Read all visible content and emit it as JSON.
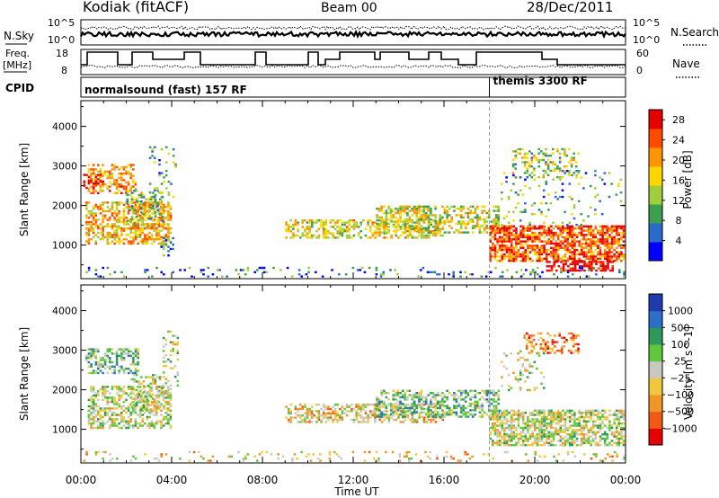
{
  "header": {
    "station": "Kodiak (fitACF)",
    "beam": "Beam 00",
    "date": "28/Dec/2011"
  },
  "top_panels": {
    "nsky_label": "N.Sky",
    "nsearch_label": "N.Search",
    "noise_ticks": [
      "10^5",
      "10^0"
    ],
    "freq_label_line1": "Freq.",
    "freq_label_line2": "[MHz]",
    "freq_ticks": [
      "18",
      "8"
    ],
    "nave_label": "Nave",
    "nave_ticks": [
      "60",
      "0"
    ],
    "cpid_label": "CPID",
    "cpid_segments": [
      {
        "name": "normalsound (fast) 157 RF",
        "start": 0,
        "end": 18
      },
      {
        "name": "themis 3300 RF",
        "start": 18,
        "end": 24
      }
    ]
  },
  "chart_data": [
    {
      "type": "heatmap",
      "title": "",
      "xlabel": "Time UT",
      "ylabel": "Slant Range [km]",
      "xlim": [
        0,
        24
      ],
      "ylim": [
        150,
        4650
      ],
      "x_ticks": [
        "00:00",
        "04:00",
        "08:00",
        "12:00",
        "16:00",
        "20:00",
        "00:00"
      ],
      "y_ticks": [
        1000,
        2000,
        3000,
        4000
      ],
      "colorbar": {
        "label": "Power [dB]",
        "ticks": [
          4,
          8,
          12,
          16,
          20,
          24,
          28
        ],
        "range": [
          0,
          30
        ],
        "colors": [
          "#0000ff",
          "#2a6acd",
          "#3ca050",
          "#a0cd3c",
          "#ffd700",
          "#ff9600",
          "#ff4b00",
          "#e60000"
        ]
      },
      "scatter_regions": [
        {
          "t0": 0.3,
          "t1": 2.5,
          "r0": 2300,
          "r1": 3050,
          "mean": 20,
          "density": 0.55
        },
        {
          "t0": 0.2,
          "t1": 4.0,
          "r0": 1000,
          "r1": 2100,
          "mean": 19,
          "density": 0.6
        },
        {
          "t0": 0.1,
          "t1": 1.0,
          "r0": 2400,
          "r1": 2800,
          "mean": 27,
          "density": 0.5
        },
        {
          "t0": 2.0,
          "t1": 3.6,
          "r0": 1500,
          "r1": 2400,
          "mean": 12,
          "density": 0.35
        },
        {
          "t0": 3.0,
          "t1": 4.2,
          "r0": 2100,
          "r1": 3500,
          "mean": 10,
          "density": 0.18
        },
        {
          "t0": 3.5,
          "t1": 4.1,
          "r0": 700,
          "r1": 1200,
          "mean": 9,
          "density": 0.4
        },
        {
          "t0": 9.0,
          "t1": 16.0,
          "r0": 1150,
          "r1": 1650,
          "mean": 16,
          "density": 0.5
        },
        {
          "t0": 13.0,
          "t1": 18.5,
          "r0": 1300,
          "r1": 2000,
          "mean": 15,
          "density": 0.55
        },
        {
          "t0": 18.0,
          "t1": 24.0,
          "r0": 550,
          "r1": 1500,
          "mean": 24,
          "density": 0.7
        },
        {
          "t0": 20.5,
          "t1": 23.5,
          "r0": 300,
          "r1": 600,
          "mean": 29,
          "density": 0.55
        },
        {
          "t0": 19.0,
          "t1": 22.0,
          "r0": 2700,
          "r1": 3450,
          "mean": 14,
          "density": 0.3
        },
        {
          "t0": 18.5,
          "t1": 24.0,
          "r0": 1500,
          "r1": 2900,
          "mean": 10,
          "density": 0.1
        },
        {
          "t0": 0.0,
          "t1": 24.0,
          "r0": 180,
          "r1": 450,
          "mean": 8,
          "density": 0.12
        }
      ]
    },
    {
      "type": "heatmap",
      "title": "",
      "xlabel": "Time UT",
      "ylabel": "Slant Range [km]",
      "xlim": [
        0,
        24
      ],
      "ylim": [
        150,
        4650
      ],
      "x_ticks": [
        "00:00",
        "04:00",
        "08:00",
        "12:00",
        "16:00",
        "20:00",
        "00:00"
      ],
      "y_ticks": [
        1000,
        2000,
        3000,
        4000
      ],
      "colorbar": {
        "label": "Velocity [m s^-1]",
        "ticks": [
          "1000",
          "500",
          "100",
          "25",
          "−25",
          "−100",
          "−500",
          "−1000"
        ],
        "colors": [
          "#1f3bb0",
          "#2d6fc8",
          "#2e9a5a",
          "#5fc83c",
          "#c8c8c0",
          "#f0c83c",
          "#f09628",
          "#f05a14",
          "#e60000"
        ]
      },
      "scatter_regions": [
        {
          "t0": 0.2,
          "t1": 2.6,
          "r0": 2400,
          "r1": 3050,
          "mean": 3,
          "density": 0.5
        },
        {
          "t0": 0.3,
          "t1": 4.0,
          "r0": 1000,
          "r1": 2100,
          "mean": 4,
          "density": 0.55
        },
        {
          "t0": 2.2,
          "t1": 3.6,
          "r0": 1500,
          "r1": 2400,
          "mean": 4,
          "density": 0.35
        },
        {
          "t0": 3.6,
          "t1": 4.3,
          "r0": 2100,
          "r1": 3500,
          "mean": 4,
          "density": 0.2
        },
        {
          "t0": 9.0,
          "t1": 16.0,
          "r0": 1150,
          "r1": 1650,
          "mean": 5,
          "density": 0.5
        },
        {
          "t0": 13.0,
          "t1": 18.5,
          "r0": 1300,
          "r1": 2000,
          "mean": 3,
          "density": 0.5
        },
        {
          "t0": 18.0,
          "t1": 24.0,
          "r0": 550,
          "r1": 1500,
          "mean": 4,
          "density": 0.7
        },
        {
          "t0": 19.5,
          "t1": 22.0,
          "r0": 2900,
          "r1": 3450,
          "mean": 6,
          "density": 0.4
        },
        {
          "t0": 18.5,
          "t1": 20.5,
          "r0": 1900,
          "r1": 3000,
          "mean": 4,
          "density": 0.15
        },
        {
          "t0": 0.0,
          "t1": 24.0,
          "r0": 180,
          "r1": 450,
          "mean": 5,
          "density": 0.12
        }
      ]
    }
  ]
}
